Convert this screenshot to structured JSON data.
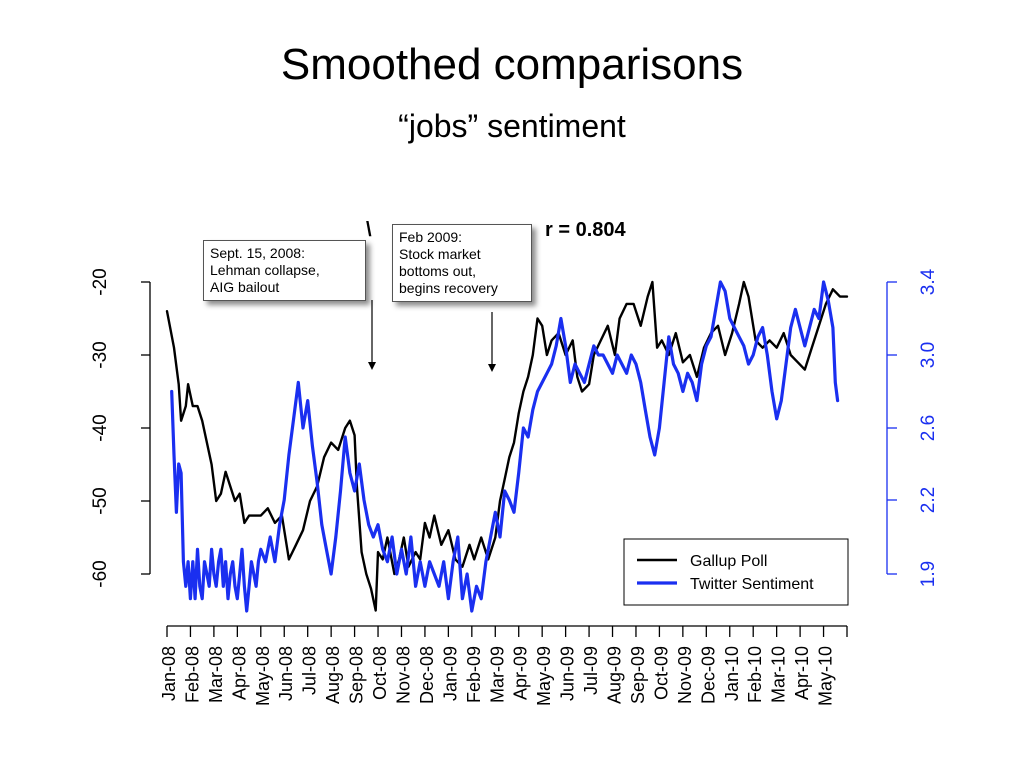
{
  "slide": {
    "title": "Smoothed comparisons",
    "subtitle": "“jobs” sentiment"
  },
  "chart_data": {
    "type": "line",
    "title": "r = 0.804",
    "title_partial_hidden_prefix": "\\",
    "x_tick_labels": [
      "Jan-08",
      "Feb-08",
      "Mar-08",
      "Apr-08",
      "May-08",
      "Jun-08",
      "Jul-08",
      "Aug-08",
      "Sep-08",
      "Oct-08",
      "Nov-08",
      "Dec-08",
      "Jan-09",
      "Feb-09",
      "Mar-09",
      "Apr-09",
      "May-09",
      "Jun-09",
      "Jul-09",
      "Aug-09",
      "Sep-09",
      "Oct-09",
      "Nov-09",
      "Dec-09",
      "Jan-10",
      "Feb-10",
      "Mar-10",
      "Apr-10",
      "May-10"
    ],
    "y_left": {
      "ticks": [
        -20,
        -30,
        -40,
        -50,
        -60
      ],
      "ylim": [
        -65,
        -20
      ]
    },
    "y_right": {
      "ticks": [
        "3.4",
        "3.0",
        "2.6",
        "2.2",
        "1.9"
      ],
      "tick_values": [
        3.4,
        3.0,
        2.6,
        2.2,
        1.9
      ],
      "color": "#1a2ff0"
    },
    "legend": {
      "placement": "bottom-right",
      "entries": [
        {
          "label": "Gallup Poll",
          "color": "#000000"
        },
        {
          "label": "Twitter Sentiment",
          "color": "#1a2ff0"
        }
      ]
    },
    "annotations": [
      {
        "lines": [
          "Sept. 15, 2008:",
          "Lehman collapse,",
          "AIG bailout"
        ],
        "x_month": 8.5
      },
      {
        "lines": [
          "Feb 2009:",
          "Stock market",
          "bottoms out,",
          "begins recovery"
        ],
        "x_month": 13.5
      }
    ],
    "series": [
      {
        "name": "Gallup Poll",
        "axis": "left",
        "color": "#000000",
        "points": [
          [
            0.0,
            -24
          ],
          [
            0.3,
            -29
          ],
          [
            0.5,
            -34
          ],
          [
            0.6,
            -39
          ],
          [
            0.8,
            -37
          ],
          [
            0.9,
            -34
          ],
          [
            1.1,
            -37
          ],
          [
            1.3,
            -37
          ],
          [
            1.5,
            -39
          ],
          [
            1.7,
            -42
          ],
          [
            1.9,
            -45
          ],
          [
            2.1,
            -50
          ],
          [
            2.3,
            -49
          ],
          [
            2.5,
            -46
          ],
          [
            2.7,
            -48
          ],
          [
            2.9,
            -50
          ],
          [
            3.1,
            -49
          ],
          [
            3.3,
            -53
          ],
          [
            3.5,
            -52
          ],
          [
            3.8,
            -52
          ],
          [
            4.0,
            -52
          ],
          [
            4.3,
            -51
          ],
          [
            4.6,
            -53
          ],
          [
            4.9,
            -52
          ],
          [
            5.2,
            -58
          ],
          [
            5.5,
            -56
          ],
          [
            5.8,
            -54
          ],
          [
            6.1,
            -50
          ],
          [
            6.4,
            -48
          ],
          [
            6.7,
            -44
          ],
          [
            7.0,
            -42
          ],
          [
            7.3,
            -43
          ],
          [
            7.6,
            -40
          ],
          [
            7.8,
            -39
          ],
          [
            8.0,
            -41
          ],
          [
            8.1,
            -48
          ],
          [
            8.3,
            -57
          ],
          [
            8.5,
            -60
          ],
          [
            8.7,
            -62
          ],
          [
            8.9,
            -65
          ],
          [
            9.0,
            -57
          ],
          [
            9.2,
            -58
          ],
          [
            9.4,
            -55
          ],
          [
            9.7,
            -60
          ],
          [
            9.9,
            -58
          ],
          [
            10.1,
            -55
          ],
          [
            10.3,
            -59
          ],
          [
            10.6,
            -57
          ],
          [
            10.8,
            -58
          ],
          [
            11.0,
            -53
          ],
          [
            11.2,
            -55
          ],
          [
            11.4,
            -52
          ],
          [
            11.7,
            -56
          ],
          [
            12.0,
            -54
          ],
          [
            12.3,
            -58
          ],
          [
            12.6,
            -59
          ],
          [
            12.9,
            -56
          ],
          [
            13.1,
            -58
          ],
          [
            13.4,
            -55
          ],
          [
            13.7,
            -58
          ],
          [
            14.0,
            -55
          ],
          [
            14.2,
            -50
          ],
          [
            14.4,
            -47
          ],
          [
            14.6,
            -44
          ],
          [
            14.8,
            -42
          ],
          [
            15.0,
            -38
          ],
          [
            15.2,
            -35
          ],
          [
            15.4,
            -33
          ],
          [
            15.6,
            -30
          ],
          [
            15.8,
            -25
          ],
          [
            16.0,
            -26
          ],
          [
            16.2,
            -30
          ],
          [
            16.4,
            -28
          ],
          [
            16.7,
            -27
          ],
          [
            17.0,
            -30
          ],
          [
            17.3,
            -28
          ],
          [
            17.5,
            -33
          ],
          [
            17.7,
            -35
          ],
          [
            18.0,
            -34
          ],
          [
            18.2,
            -30
          ],
          [
            18.5,
            -28
          ],
          [
            18.8,
            -26
          ],
          [
            19.1,
            -30
          ],
          [
            19.3,
            -25
          ],
          [
            19.6,
            -23
          ],
          [
            19.9,
            -23
          ],
          [
            20.2,
            -26
          ],
          [
            20.5,
            -22
          ],
          [
            20.7,
            -20
          ],
          [
            20.9,
            -29
          ],
          [
            21.1,
            -28
          ],
          [
            21.4,
            -30
          ],
          [
            21.7,
            -27
          ],
          [
            22.0,
            -31
          ],
          [
            22.3,
            -30
          ],
          [
            22.6,
            -33
          ],
          [
            22.9,
            -29
          ],
          [
            23.2,
            -27
          ],
          [
            23.5,
            -26
          ],
          [
            23.8,
            -30
          ],
          [
            24.1,
            -27
          ],
          [
            24.4,
            -23
          ],
          [
            24.6,
            -20
          ],
          [
            24.8,
            -22
          ],
          [
            25.1,
            -28
          ],
          [
            25.4,
            -29
          ],
          [
            25.7,
            -28
          ],
          [
            26.0,
            -29
          ],
          [
            26.3,
            -27
          ],
          [
            26.6,
            -30
          ],
          [
            26.9,
            -31
          ],
          [
            27.2,
            -32
          ],
          [
            27.5,
            -29
          ],
          [
            27.8,
            -26
          ],
          [
            28.1,
            -23
          ],
          [
            28.4,
            -21
          ],
          [
            28.7,
            -22
          ],
          [
            29.0,
            -22
          ]
        ]
      },
      {
        "name": "Twitter Sentiment",
        "axis": "right",
        "color": "#1a2ff0",
        "points": [
          [
            0.2,
            2.8
          ],
          [
            0.3,
            2.45
          ],
          [
            0.4,
            2.15
          ],
          [
            0.5,
            2.4
          ],
          [
            0.6,
            2.35
          ],
          [
            0.7,
            1.95
          ],
          [
            0.8,
            1.85
          ],
          [
            0.9,
            1.95
          ],
          [
            1.0,
            1.8
          ],
          [
            1.1,
            1.95
          ],
          [
            1.2,
            1.8
          ],
          [
            1.3,
            2.0
          ],
          [
            1.4,
            1.85
          ],
          [
            1.5,
            1.8
          ],
          [
            1.6,
            1.95
          ],
          [
            1.7,
            1.9
          ],
          [
            1.8,
            1.85
          ],
          [
            1.9,
            2.0
          ],
          [
            2.0,
            1.9
          ],
          [
            2.1,
            1.85
          ],
          [
            2.2,
            1.95
          ],
          [
            2.3,
            2.0
          ],
          [
            2.4,
            1.85
          ],
          [
            2.5,
            1.95
          ],
          [
            2.6,
            1.8
          ],
          [
            2.7,
            1.9
          ],
          [
            2.8,
            1.95
          ],
          [
            2.9,
            1.85
          ],
          [
            3.0,
            1.8
          ],
          [
            3.1,
            1.9
          ],
          [
            3.2,
            2.0
          ],
          [
            3.3,
            1.85
          ],
          [
            3.4,
            1.75
          ],
          [
            3.5,
            1.85
          ],
          [
            3.6,
            1.95
          ],
          [
            3.7,
            1.9
          ],
          [
            3.8,
            1.85
          ],
          [
            3.9,
            1.95
          ],
          [
            4.0,
            2.0
          ],
          [
            4.2,
            1.95
          ],
          [
            4.4,
            2.05
          ],
          [
            4.6,
            1.95
          ],
          [
            4.8,
            2.1
          ],
          [
            5.0,
            2.2
          ],
          [
            5.2,
            2.45
          ],
          [
            5.4,
            2.65
          ],
          [
            5.6,
            2.85
          ],
          [
            5.8,
            2.6
          ],
          [
            6.0,
            2.75
          ],
          [
            6.2,
            2.5
          ],
          [
            6.4,
            2.3
          ],
          [
            6.6,
            2.1
          ],
          [
            6.8,
            2.0
          ],
          [
            7.0,
            1.9
          ],
          [
            7.2,
            2.05
          ],
          [
            7.4,
            2.25
          ],
          [
            7.6,
            2.55
          ],
          [
            7.8,
            2.35
          ],
          [
            8.0,
            2.25
          ],
          [
            8.2,
            2.4
          ],
          [
            8.4,
            2.2
          ],
          [
            8.6,
            2.1
          ],
          [
            8.8,
            2.05
          ],
          [
            9.0,
            2.1
          ],
          [
            9.2,
            2.0
          ],
          [
            9.4,
            1.95
          ],
          [
            9.6,
            2.05
          ],
          [
            9.8,
            1.9
          ],
          [
            10.0,
            2.0
          ],
          [
            10.2,
            1.9
          ],
          [
            10.4,
            2.05
          ],
          [
            10.6,
            1.85
          ],
          [
            10.8,
            1.95
          ],
          [
            11.0,
            1.85
          ],
          [
            11.2,
            1.95
          ],
          [
            11.4,
            1.9
          ],
          [
            11.6,
            1.85
          ],
          [
            11.8,
            1.95
          ],
          [
            12.0,
            1.8
          ],
          [
            12.2,
            1.95
          ],
          [
            12.4,
            2.05
          ],
          [
            12.6,
            1.8
          ],
          [
            12.8,
            1.9
          ],
          [
            13.0,
            1.75
          ],
          [
            13.2,
            1.85
          ],
          [
            13.4,
            1.8
          ],
          [
            13.6,
            1.95
          ],
          [
            13.8,
            2.05
          ],
          [
            14.0,
            2.15
          ],
          [
            14.2,
            2.05
          ],
          [
            14.4,
            2.25
          ],
          [
            14.6,
            2.2
          ],
          [
            14.8,
            2.15
          ],
          [
            15.0,
            2.35
          ],
          [
            15.2,
            2.6
          ],
          [
            15.4,
            2.55
          ],
          [
            15.6,
            2.7
          ],
          [
            15.8,
            2.8
          ],
          [
            16.0,
            2.85
          ],
          [
            16.2,
            2.9
          ],
          [
            16.4,
            2.95
          ],
          [
            16.6,
            3.05
          ],
          [
            16.8,
            3.2
          ],
          [
            17.0,
            3.05
          ],
          [
            17.2,
            2.85
          ],
          [
            17.4,
            2.95
          ],
          [
            17.6,
            2.9
          ],
          [
            17.8,
            2.85
          ],
          [
            18.0,
            2.95
          ],
          [
            18.2,
            3.05
          ],
          [
            18.4,
            3.0
          ],
          [
            18.6,
            3.0
          ],
          [
            18.8,
            2.95
          ],
          [
            19.0,
            2.9
          ],
          [
            19.2,
            3.0
          ],
          [
            19.4,
            2.95
          ],
          [
            19.6,
            2.9
          ],
          [
            19.8,
            3.0
          ],
          [
            20.0,
            2.95
          ],
          [
            20.2,
            2.85
          ],
          [
            20.4,
            2.7
          ],
          [
            20.6,
            2.55
          ],
          [
            20.8,
            2.45
          ],
          [
            21.0,
            2.6
          ],
          [
            21.2,
            2.85
          ],
          [
            21.4,
            3.1
          ],
          [
            21.6,
            2.95
          ],
          [
            21.8,
            2.9
          ],
          [
            22.0,
            2.8
          ],
          [
            22.2,
            2.9
          ],
          [
            22.4,
            2.85
          ],
          [
            22.6,
            2.75
          ],
          [
            22.8,
            2.95
          ],
          [
            23.0,
            3.05
          ],
          [
            23.2,
            3.1
          ],
          [
            23.4,
            3.25
          ],
          [
            23.6,
            3.4
          ],
          [
            23.8,
            3.35
          ],
          [
            24.0,
            3.2
          ],
          [
            24.2,
            3.15
          ],
          [
            24.4,
            3.1
          ],
          [
            24.6,
            3.05
          ],
          [
            24.8,
            2.95
          ],
          [
            25.0,
            3.0
          ],
          [
            25.2,
            3.1
          ],
          [
            25.4,
            3.15
          ],
          [
            25.6,
            3.0
          ],
          [
            25.8,
            2.8
          ],
          [
            26.0,
            2.65
          ],
          [
            26.2,
            2.75
          ],
          [
            26.4,
            2.95
          ],
          [
            26.6,
            3.15
          ],
          [
            26.8,
            3.25
          ],
          [
            27.0,
            3.15
          ],
          [
            27.2,
            3.05
          ],
          [
            27.4,
            3.15
          ],
          [
            27.6,
            3.25
          ],
          [
            27.8,
            3.2
          ],
          [
            28.0,
            3.4
          ],
          [
            28.2,
            3.3
          ],
          [
            28.4,
            3.15
          ],
          [
            28.5,
            2.85
          ],
          [
            28.6,
            2.75
          ]
        ]
      }
    ]
  }
}
